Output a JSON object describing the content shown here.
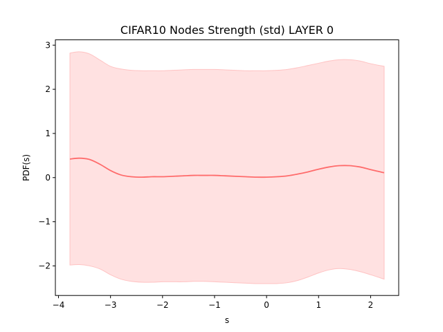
{
  "chart_data": {
    "type": "line",
    "title": "CIFAR10 Nodes Strength (std) LAYER 0",
    "xlabel": "s",
    "ylabel": "PDF(s)",
    "xlim": [
      -4.06,
      2.54
    ],
    "ylim": [
      -2.67,
      3.12
    ],
    "xticks": [
      -4,
      -3,
      -2,
      -1,
      0,
      1,
      2
    ],
    "xtick_labels": [
      "−4",
      "−3",
      "−2",
      "−1",
      "0",
      "1",
      "2"
    ],
    "yticks": [
      -2,
      -1,
      0,
      1,
      2,
      3
    ],
    "ytick_labels": [
      "−2",
      "−1",
      "0",
      "1",
      "2",
      "3"
    ],
    "grid": false,
    "legend": "none",
    "series": [
      {
        "color": "#ff6b6b",
        "band_color": "#ffe1e1",
        "band_edge_color": "#ffc2c2",
        "x": [
          -3.78,
          -3.6,
          -3.4,
          -3.2,
          -3.0,
          -2.8,
          -2.6,
          -2.4,
          -2.2,
          -2.0,
          -1.8,
          -1.6,
          -1.4,
          -1.2,
          -1.0,
          -0.8,
          -0.6,
          -0.4,
          -0.2,
          0.0,
          0.2,
          0.4,
          0.6,
          0.8,
          1.0,
          1.2,
          1.4,
          1.6,
          1.8,
          2.0,
          2.26
        ],
        "y": [
          0.42,
          0.44,
          0.41,
          0.3,
          0.16,
          0.06,
          0.02,
          0.01,
          0.02,
          0.02,
          0.03,
          0.04,
          0.05,
          0.05,
          0.05,
          0.04,
          0.03,
          0.02,
          0.01,
          0.01,
          0.02,
          0.04,
          0.08,
          0.13,
          0.19,
          0.24,
          0.27,
          0.27,
          0.24,
          0.18,
          0.11
        ],
        "upper": [
          2.82,
          2.85,
          2.8,
          2.66,
          2.52,
          2.46,
          2.43,
          2.42,
          2.42,
          2.42,
          2.43,
          2.44,
          2.45,
          2.45,
          2.45,
          2.44,
          2.43,
          2.42,
          2.42,
          2.42,
          2.43,
          2.45,
          2.49,
          2.54,
          2.59,
          2.64,
          2.67,
          2.67,
          2.64,
          2.58,
          2.52
        ],
        "lower": [
          -1.98,
          -1.97,
          -2.0,
          -2.07,
          -2.2,
          -2.3,
          -2.35,
          -2.37,
          -2.37,
          -2.36,
          -2.36,
          -2.36,
          -2.35,
          -2.35,
          -2.36,
          -2.37,
          -2.38,
          -2.39,
          -2.4,
          -2.4,
          -2.4,
          -2.38,
          -2.33,
          -2.25,
          -2.16,
          -2.09,
          -2.06,
          -2.08,
          -2.13,
          -2.2,
          -2.3
        ]
      }
    ]
  }
}
